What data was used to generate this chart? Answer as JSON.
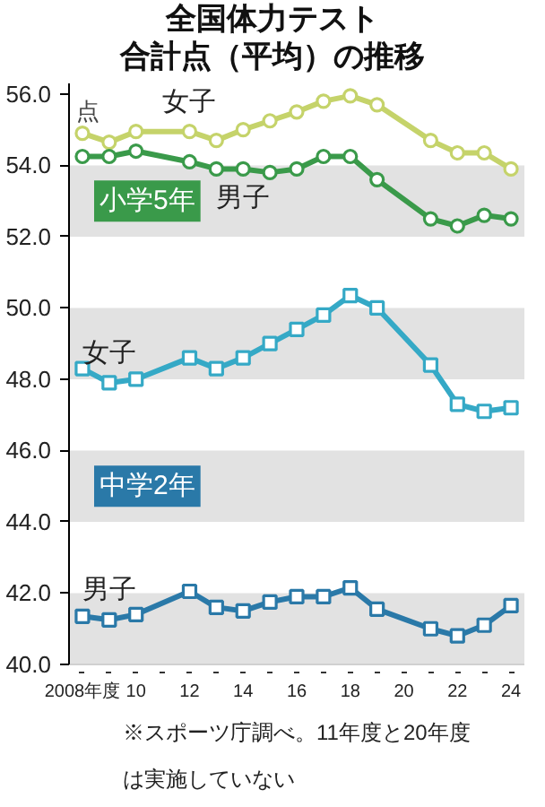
{
  "chart_data": {
    "type": "line",
    "title": "全国体力テスト",
    "subtitle": "合計点（平均）の推移",
    "ylabel": "点",
    "x": [
      2008,
      2009,
      2010,
      2012,
      2013,
      2014,
      2015,
      2016,
      2017,
      2018,
      2019,
      2021,
      2022,
      2023,
      2024
    ],
    "series": [
      {
        "name": "女子",
        "color": "#c5d36a",
        "marker": "circle",
        "values": [
          54.9,
          54.65,
          54.95,
          54.95,
          54.7,
          55.0,
          55.25,
          55.5,
          55.8,
          55.95,
          55.7,
          54.7,
          54.35,
          54.35,
          53.9
        ]
      },
      {
        "name": "男子",
        "color": "#3a9a4a",
        "marker": "circle",
        "values": [
          54.25,
          54.25,
          54.4,
          54.1,
          53.9,
          53.9,
          53.8,
          53.9,
          54.25,
          54.25,
          53.6,
          52.5,
          52.3,
          52.6,
          52.5
        ]
      },
      {
        "name": "女子",
        "color": "#35a9c6",
        "marker": "square",
        "values": [
          48.3,
          47.9,
          48.0,
          48.6,
          48.3,
          48.6,
          49.0,
          49.4,
          49.8,
          50.35,
          50.0,
          48.4,
          47.3,
          47.1,
          47.2
        ]
      },
      {
        "name": "男子",
        "color": "#2a79a8",
        "marker": "square",
        "values": [
          41.35,
          41.25,
          41.4,
          42.05,
          41.6,
          41.5,
          41.75,
          41.9,
          41.9,
          42.15,
          41.55,
          41.0,
          40.8,
          41.1,
          41.65
        ]
      }
    ],
    "xlim": [
      2007.5,
      2024.5
    ],
    "ylim": [
      40,
      56.3
    ],
    "xticks": [
      {
        "value": 2008,
        "label": "2008年度"
      },
      {
        "value": 2009,
        "label": null
      },
      {
        "value": 2010,
        "label": "10"
      },
      {
        "value": 2011,
        "label": null
      },
      {
        "value": 2012,
        "label": "12"
      },
      {
        "value": 2013,
        "label": null
      },
      {
        "value": 2014,
        "label": "14"
      },
      {
        "value": 2015,
        "label": null
      },
      {
        "value": 2016,
        "label": "16"
      },
      {
        "value": 2017,
        "label": null
      },
      {
        "value": 2018,
        "label": "18"
      },
      {
        "value": 2019,
        "label": null
      },
      {
        "value": 2020,
        "label": "20"
      },
      {
        "value": 2021,
        "label": null
      },
      {
        "value": 2022,
        "label": "22"
      },
      {
        "value": 2023,
        "label": null
      },
      {
        "value": 2024,
        "label": "24"
      }
    ],
    "yticks": [
      {
        "value": 40,
        "label": "40.0"
      },
      {
        "value": 42,
        "label": "42.0"
      },
      {
        "value": 44,
        "label": "44.0"
      },
      {
        "value": 46,
        "label": "46.0"
      },
      {
        "value": 48,
        "label": "48.0"
      },
      {
        "value": 50,
        "label": "50.0"
      },
      {
        "value": 52,
        "label": "52.0"
      },
      {
        "value": 54,
        "label": "54.0"
      },
      {
        "value": 56,
        "label": "56.0"
      }
    ],
    "bands": [
      {
        "axis": "y",
        "from": 52,
        "to": 54,
        "color": "#e2e2e2"
      },
      {
        "axis": "y",
        "from": 48,
        "to": 50,
        "color": "#e2e2e2"
      },
      {
        "axis": "y",
        "from": 44,
        "to": 46,
        "color": "#e2e2e2"
      },
      {
        "axis": "y",
        "from": 40,
        "to": 42,
        "color": "#e2e2e2"
      }
    ],
    "annotations": [
      "小学5年",
      "中学2年",
      "※スポーツ庁調べ。11年度と20年度は実施していない"
    ],
    "grid": false
  }
}
